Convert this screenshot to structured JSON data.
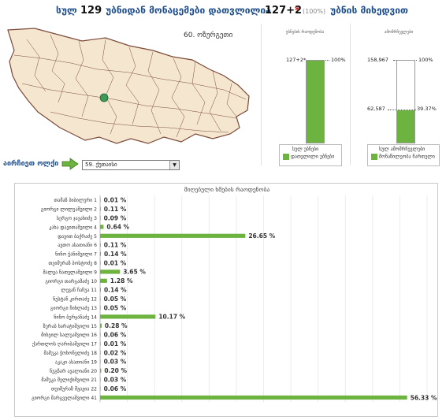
{
  "header": {
    "prefix": "სულ",
    "total": "129",
    "middle": "უბნიდან მონაცემები დათვლილია",
    "counted": "127+2",
    "star": "*",
    "percent": "(100%)",
    "suffix": "უბნის მიხედვით"
  },
  "map": {
    "district_label": "60. ოზურგეთი"
  },
  "mini_charts": [
    {
      "title": "უბნების რაოდენობა",
      "top_label": "127+2*",
      "top_percent": "100%",
      "fill_fraction": 1.0,
      "legend_total": "სულ უბნები",
      "legend_counted": "დათვლილი უბნები"
    },
    {
      "title": "ამომრჩევლები",
      "top_label": "158,967",
      "top_percent": "100%",
      "value_label": "62,587",
      "value_percent": "39.37%",
      "fill_fraction": 0.3937,
      "legend_total": "სულ ამომრჩევლები",
      "legend_counted": "მონაწილეობა ჩართული"
    }
  ],
  "selector": {
    "label": "აირჩიეთ ოლქი",
    "value": "59. ქუთაისი"
  },
  "chart_data": {
    "type": "bar",
    "orientation": "horizontal",
    "title": "მიღებული ხმების რაოდენობა",
    "xlim": [
      0,
      60
    ],
    "grid": true,
    "categories": [
      "თამაზ ბიბილური 1",
      "გიორგი ლილუაშვილი 2",
      "სერგო ჯავახიძე 3",
      "კახა დავითაშვილი 4",
      "დავით ბაქრაძე 5",
      "ავთო ასათიანი 6",
      "ნინო ჭანიშვილი 7",
      "თეიმურაზ ბოსტოძე 8",
      "შალვა ნათელაშვილი 9",
      "გიორგი თარგამაძე 10",
      "ლევან ჩაჩუა 11",
      "ნესტან კირთაძე 12",
      "გიორგი ჩიხლაძე 13",
      "ნინო ბურჯანაძე 14",
      "ზურაბ ხარატიშვილი 15",
      "მიხეილ სალუაშვილი 16",
      "ქართლოს ღარიბაშვილი 17",
      "მამუკა ჭოხონელიძე 18",
      "აკაკი ასათიანი 19",
      "ნუგზარ ავალიანი 20",
      "მამუკა მელიქიშვილი 21",
      "თეიმურაზ მჟავია 22",
      "გიორგი მარგველაშვილი 41"
    ],
    "values": [
      0.01,
      0.11,
      0.09,
      0.64,
      26.65,
      0.11,
      0.14,
      0.01,
      3.65,
      1.28,
      0.14,
      0.05,
      0.05,
      10.17,
      0.28,
      0.06,
      0.01,
      0.02,
      0.03,
      0.2,
      0.03,
      0.06,
      56.33
    ],
    "value_labels": [
      "0.01 %",
      "0.11 %",
      "0.09 %",
      "0.64 %",
      "26.65 %",
      "0.11 %",
      "0.14 %",
      "0.01 %",
      "3.65 %",
      "1.28 %",
      "0.14 %",
      "0.05 %",
      "0.05 %",
      "10.17 %",
      "0.28 %",
      "0.06 %",
      "0.01 %",
      "0.02 %",
      "0.03 %",
      "0.20 %",
      "0.03 %",
      "0.06 %",
      "56.33 %"
    ]
  },
  "colors": {
    "bar": "#6cb33f",
    "header_text": "#1f4f8f",
    "map_fill": "#f5e6cf",
    "map_border": "#7a4a3a"
  }
}
